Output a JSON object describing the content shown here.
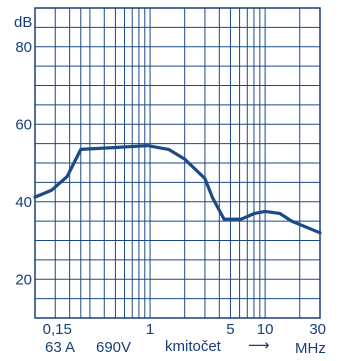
{
  "chart_data": {
    "type": "line",
    "x_scale": "log",
    "xlim": [
      0.1,
      30
    ],
    "ylim": [
      10,
      90
    ],
    "y_unit": "dB",
    "y_ticks": [
      20,
      40,
      60,
      80
    ],
    "x_ticks": [
      {
        "value": 0.15,
        "label": "0,15"
      },
      {
        "value": 1,
        "label": "1"
      },
      {
        "value": 5,
        "label": "5"
      },
      {
        "value": 10,
        "label": "10"
      },
      {
        "value": 30,
        "label": "30"
      }
    ],
    "x_caption": {
      "current": "63 A",
      "voltage": "690V",
      "xlabel": "kmitočet",
      "arrow": "⟶",
      "unit": "MHz"
    },
    "grid": true,
    "color": "#1b4a86",
    "series": [
      {
        "x": [
          0.1,
          0.14,
          0.19,
          0.25,
          0.5,
          0.95,
          1.45,
          2.0,
          3.0,
          3.5,
          4.4,
          6.2,
          8.1,
          10.0,
          13.4,
          17.0,
          30.0
        ],
        "y": [
          41.2,
          43.0,
          46.5,
          53.5,
          54.0,
          54.5,
          53.5,
          51.0,
          46.0,
          41.0,
          35.5,
          35.5,
          37.0,
          37.5,
          37.0,
          35.0,
          32.0
        ]
      }
    ]
  }
}
